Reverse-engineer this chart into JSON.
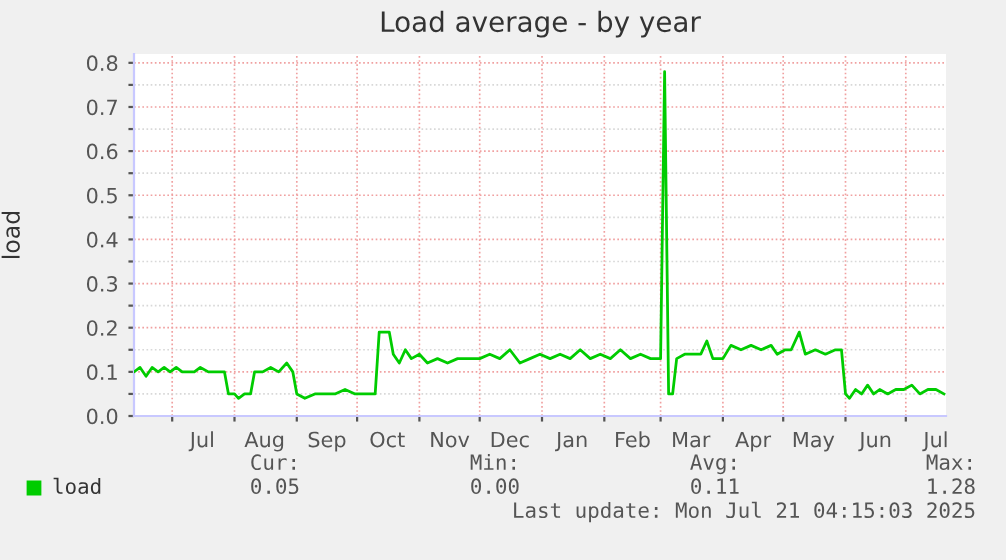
{
  "chart_data": {
    "type": "line",
    "title": "Load average - by year",
    "ylabel": "load",
    "legend": "bottom",
    "grid": true,
    "xlim": [
      "2024-06-12",
      "2025-07-21"
    ],
    "xticks": [
      {
        "value": "2024-07-01",
        "label": null
      },
      {
        "value": "2024-07-16",
        "label": "Jul"
      },
      {
        "value": "2024-08-01",
        "label": null
      },
      {
        "value": "2024-08-16",
        "label": "Aug"
      },
      {
        "value": "2024-09-01",
        "label": null
      },
      {
        "value": "2024-09-16",
        "label": "Sep"
      },
      {
        "value": "2024-10-01",
        "label": null
      },
      {
        "value": "2024-10-16",
        "label": "Oct"
      },
      {
        "value": "2024-11-01",
        "label": null
      },
      {
        "value": "2024-11-16",
        "label": "Nov"
      },
      {
        "value": "2024-12-01",
        "label": null
      },
      {
        "value": "2024-12-16",
        "label": "Dec"
      },
      {
        "value": "2025-01-01",
        "label": null
      },
      {
        "value": "2025-01-16",
        "label": "Jan"
      },
      {
        "value": "2025-02-01",
        "label": null
      },
      {
        "value": "2025-02-15",
        "label": "Feb"
      },
      {
        "value": "2025-03-01",
        "label": null
      },
      {
        "value": "2025-03-16",
        "label": "Mar"
      },
      {
        "value": "2025-04-01",
        "label": null
      },
      {
        "value": "2025-04-16",
        "label": "Apr"
      },
      {
        "value": "2025-05-01",
        "label": null
      },
      {
        "value": "2025-05-16",
        "label": "May"
      },
      {
        "value": "2025-06-01",
        "label": null
      },
      {
        "value": "2025-06-16",
        "label": "Jun"
      },
      {
        "value": "2025-07-01",
        "label": null
      },
      {
        "value": "2025-07-16",
        "label": "Jul"
      }
    ],
    "ylim": [
      0,
      0.82
    ],
    "yticks": [
      {
        "value": 0,
        "label": "0.0"
      },
      {
        "value": 0.05,
        "label": null
      },
      {
        "value": 0.1,
        "label": "0.1"
      },
      {
        "value": 0.15,
        "label": null
      },
      {
        "value": 0.2,
        "label": "0.2"
      },
      {
        "value": 0.25,
        "label": null
      },
      {
        "value": 0.3,
        "label": "0.3"
      },
      {
        "value": 0.35,
        "label": null
      },
      {
        "value": 0.4,
        "label": "0.4"
      },
      {
        "value": 0.45,
        "label": null
      },
      {
        "value": 0.5,
        "label": "0.5"
      },
      {
        "value": 0.55,
        "label": null
      },
      {
        "value": 0.6,
        "label": "0.6"
      },
      {
        "value": 0.65,
        "label": null
      },
      {
        "value": 0.7,
        "label": "0.7"
      },
      {
        "value": 0.75,
        "label": null
      },
      {
        "value": 0.8,
        "label": "0.8"
      }
    ],
    "series": [
      {
        "name": "load",
        "color": "#00cc00",
        "x": [
          "2024-06-12",
          "2024-06-15",
          "2024-06-18",
          "2024-06-21",
          "2024-06-24",
          "2024-06-27",
          "2024-06-30",
          "2024-07-03",
          "2024-07-06",
          "2024-07-09",
          "2024-07-12",
          "2024-07-15",
          "2024-07-19",
          "2024-07-23",
          "2024-07-27",
          "2024-07-29",
          "2024-08-01",
          "2024-08-03",
          "2024-08-06",
          "2024-08-09",
          "2024-08-11",
          "2024-08-15",
          "2024-08-19",
          "2024-08-23",
          "2024-08-27",
          "2024-08-30",
          "2024-09-01",
          "2024-09-05",
          "2024-09-10",
          "2024-09-15",
          "2024-09-20",
          "2024-09-25",
          "2024-09-30",
          "2024-10-05",
          "2024-10-10",
          "2024-10-12",
          "2024-10-17",
          "2024-10-19",
          "2024-10-22",
          "2024-10-25",
          "2024-10-28",
          "2024-11-01",
          "2024-11-05",
          "2024-11-10",
          "2024-11-15",
          "2024-11-20",
          "2024-11-25",
          "2024-12-01",
          "2024-12-06",
          "2024-12-11",
          "2024-12-16",
          "2024-12-21",
          "2024-12-26",
          "2024-12-31",
          "2025-01-05",
          "2025-01-10",
          "2025-01-15",
          "2025-01-20",
          "2025-01-25",
          "2025-01-30",
          "2025-02-04",
          "2025-02-09",
          "2025-02-14",
          "2025-02-19",
          "2025-02-24",
          "2025-03-01",
          "2025-03-03",
          "2025-03-05",
          "2025-03-07",
          "2025-03-09",
          "2025-03-13",
          "2025-03-17",
          "2025-03-21",
          "2025-03-24",
          "2025-03-27",
          "2025-04-01",
          "2025-04-05",
          "2025-04-10",
          "2025-04-15",
          "2025-04-20",
          "2025-04-25",
          "2025-04-28",
          "2025-05-02",
          "2025-05-05",
          "2025-05-09",
          "2025-05-12",
          "2025-05-17",
          "2025-05-22",
          "2025-05-27",
          "2025-05-30",
          "2025-06-01",
          "2025-06-03",
          "2025-06-06",
          "2025-06-09",
          "2025-06-12",
          "2025-06-15",
          "2025-06-18",
          "2025-06-22",
          "2025-06-26",
          "2025-06-30",
          "2025-07-04",
          "2025-07-08",
          "2025-07-12",
          "2025-07-16",
          "2025-07-20"
        ],
        "values": [
          0.1,
          0.11,
          0.09,
          0.11,
          0.1,
          0.11,
          0.1,
          0.11,
          0.1,
          0.1,
          0.1,
          0.11,
          0.1,
          0.1,
          0.1,
          0.05,
          0.05,
          0.04,
          0.05,
          0.05,
          0.1,
          0.1,
          0.11,
          0.1,
          0.12,
          0.1,
          0.05,
          0.04,
          0.05,
          0.05,
          0.05,
          0.06,
          0.05,
          0.05,
          0.05,
          0.19,
          0.19,
          0.14,
          0.12,
          0.15,
          0.13,
          0.14,
          0.12,
          0.13,
          0.12,
          0.13,
          0.13,
          0.13,
          0.14,
          0.13,
          0.15,
          0.12,
          0.13,
          0.14,
          0.13,
          0.14,
          0.13,
          0.15,
          0.13,
          0.14,
          0.13,
          0.15,
          0.13,
          0.14,
          0.13,
          0.13,
          0.78,
          0.05,
          0.05,
          0.13,
          0.14,
          0.14,
          0.14,
          0.17,
          0.13,
          0.13,
          0.16,
          0.15,
          0.16,
          0.15,
          0.16,
          0.14,
          0.15,
          0.15,
          0.19,
          0.14,
          0.15,
          0.14,
          0.15,
          0.15,
          0.05,
          0.04,
          0.06,
          0.05,
          0.07,
          0.05,
          0.06,
          0.05,
          0.06,
          0.06,
          0.07,
          0.05,
          0.06,
          0.06,
          0.05
        ]
      }
    ],
    "annotations": [
      "Cur:",
      "Min:",
      "Avg:",
      "Max:",
      "0.05",
      "0.00",
      "0.11",
      "1.28",
      "Last update: Mon Jul 21 04:15:03 2025"
    ]
  }
}
